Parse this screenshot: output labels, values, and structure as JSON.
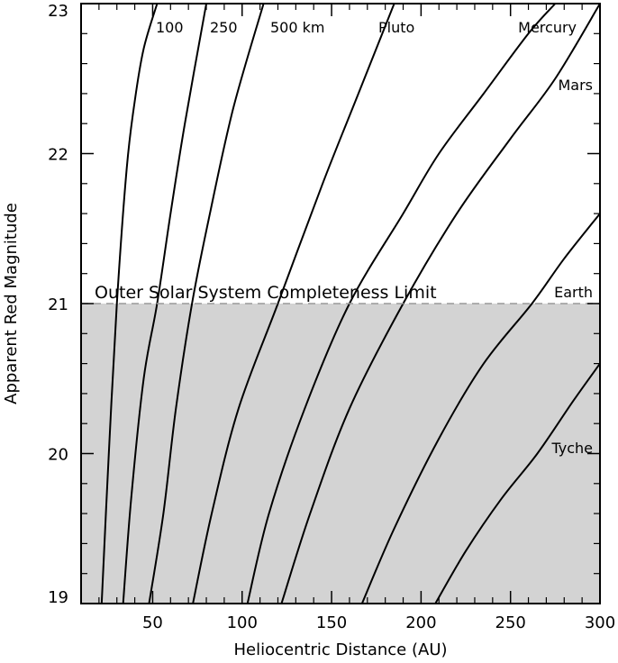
{
  "chart_data": {
    "type": "line",
    "xlabel": "Heliocentric Distance (AU)",
    "ylabel": "Apparent Red Magnitude",
    "xlim": [
      10,
      300
    ],
    "ylim": [
      19,
      23
    ],
    "x_ticks": [
      50,
      100,
      150,
      200,
      250,
      300
    ],
    "y_ticks": [
      19,
      20,
      21,
      22,
      23
    ],
    "grid": false,
    "limit_line": {
      "label": "Outer Solar System Completeness Limit",
      "magnitude": 21.0
    },
    "series": [
      {
        "name": "100",
        "label": "100",
        "x": [
          21.5,
          25.5,
          30,
          35.5,
          40,
          45,
          52.5
        ],
        "y": [
          19.0,
          20.0,
          21.0,
          21.9,
          22.35,
          22.7,
          23.0
        ]
      },
      {
        "name": "250",
        "label": "250",
        "x": [
          33.5,
          38,
          45,
          52.5,
          60,
          68,
          80
        ],
        "y": [
          19.0,
          19.7,
          20.5,
          21.0,
          21.6,
          22.2,
          23.0
        ]
      },
      {
        "name": "500 km",
        "label": "500 km",
        "x": [
          48,
          56,
          63,
          72,
          82,
          95,
          112
        ],
        "y": [
          19.0,
          19.6,
          20.3,
          21.0,
          21.6,
          22.3,
          23.0
        ]
      },
      {
        "name": "Pluto",
        "label": "Pluto",
        "x": [
          72.5,
          83,
          98,
          120,
          145,
          165,
          185
        ],
        "y": [
          19.0,
          19.6,
          20.3,
          21.0,
          21.8,
          22.4,
          23.0
        ]
      },
      {
        "name": "Mercury",
        "label": "Mercury",
        "x": [
          103,
          115,
          135,
          160,
          190,
          210,
          235,
          260,
          275
        ],
        "y": [
          19.0,
          19.6,
          20.3,
          21.0,
          21.6,
          22.0,
          22.4,
          22.8,
          23.0
        ]
      },
      {
        "name": "Mars",
        "label": "Mars",
        "x": [
          122,
          138,
          160,
          190,
          220,
          250,
          275,
          300
        ],
        "y": [
          19.0,
          19.6,
          20.3,
          21.0,
          21.6,
          22.1,
          22.5,
          23.0
        ]
      },
      {
        "name": "Earth",
        "label": "Earth",
        "x": [
          167,
          185,
          210,
          235,
          262,
          280,
          300
        ],
        "y": [
          19.0,
          19.5,
          20.1,
          20.6,
          21.0,
          21.3,
          21.6
        ]
      },
      {
        "name": "Tyche",
        "label": "Tyche",
        "x": [
          208,
          225,
          245,
          265,
          285,
          300
        ],
        "y": [
          19.0,
          19.35,
          19.7,
          20.0,
          20.35,
          20.6
        ]
      }
    ],
    "colors": {
      "line": "#000000",
      "shaded_region": "#d3d3d3",
      "limit_line": "#999999"
    }
  }
}
